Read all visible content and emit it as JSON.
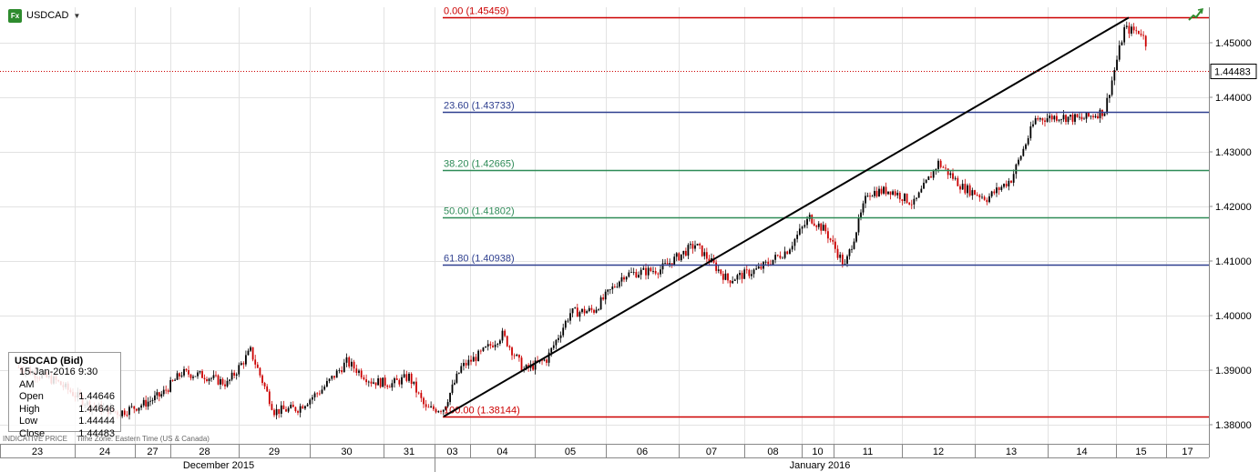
{
  "header": {
    "symbol": "USDCAD",
    "icon": "fx-icon",
    "dropdown_icon": "chevron-down-icon"
  },
  "trend_icon": "trend-line-icon",
  "infobox": {
    "title": "USDCAD (Bid)",
    "datetime": "15-Jan-2016 9:30 AM",
    "rows": [
      {
        "label": "Open",
        "value": "1.44646"
      },
      {
        "label": "High",
        "value": "1.44646"
      },
      {
        "label": "Low",
        "value": "1.44444"
      },
      {
        "label": "Close",
        "value": "1.44483"
      }
    ]
  },
  "footer_note": {
    "price_type": "INDICATIVE PRICE",
    "timezone": "Time Zone: Eastern Time (US & Canada)"
  },
  "colors": {
    "candle_up": "#000000",
    "candle_down": "#cc0000",
    "fib_red": "#cc0000",
    "fib_blue": "#2e3f8f",
    "fib_green": "#2e8b57",
    "last_price": "#cc0000"
  },
  "chart_data": {
    "type": "candlestick",
    "instrument": "USDCAD",
    "ylim": [
      1.3765,
      1.4565
    ],
    "y_ticks": [
      "1.38000",
      "1.39000",
      "1.40000",
      "1.41000",
      "1.42000",
      "1.43000",
      "1.44000",
      "1.45000"
    ],
    "y_tick_values": [
      1.38,
      1.39,
      1.4,
      1.41,
      1.42,
      1.43,
      1.44,
      1.45
    ],
    "x_day_labels": [
      "23",
      "24",
      "27",
      "28",
      "29",
      "30",
      "31",
      "03",
      "04",
      "05",
      "06",
      "07",
      "08",
      "10",
      "11",
      "12",
      "13",
      "14",
      "15",
      "17"
    ],
    "x_month_labels": [
      "December 2015",
      "January 2016"
    ],
    "last_price": 1.44483,
    "last_price_label": "1.44483",
    "fibonacci": [
      {
        "label": "0.00 (1.45459)",
        "value": 1.45459,
        "color": "#cc0000"
      },
      {
        "label": "23.60 (1.43733)",
        "value": 1.43733,
        "color": "#2e3f8f"
      },
      {
        "label": "38.20 (1.42665)",
        "value": 1.42665,
        "color": "#2e8b57"
      },
      {
        "label": "50.00 (1.41802)",
        "value": 1.41802,
        "color": "#2e8b57"
      },
      {
        "label": "61.80 (1.40938)",
        "value": 1.40938,
        "color": "#2e3f8f"
      },
      {
        "label": "100.00 (1.38144)",
        "value": 1.38144,
        "color": "#cc0000"
      }
    ],
    "trendline": {
      "from": {
        "day": "03",
        "value": 1.3815
      },
      "to": {
        "day": "15",
        "value": 1.4546
      }
    },
    "price_path": [
      {
        "day": "23",
        "value": 1.3905
      },
      {
        "day": "23",
        "value": 1.388
      },
      {
        "day": "24",
        "value": 1.3835
      },
      {
        "day": "24",
        "value": 1.3822
      },
      {
        "day": "27",
        "value": 1.3838
      },
      {
        "day": "27",
        "value": 1.3855
      },
      {
        "day": "28",
        "value": 1.3895
      },
      {
        "day": "28",
        "value": 1.389
      },
      {
        "day": "28",
        "value": 1.3875
      },
      {
        "day": "29",
        "value": 1.3935
      },
      {
        "day": "29",
        "value": 1.3825
      },
      {
        "day": "29",
        "value": 1.383
      },
      {
        "day": "30",
        "value": 1.3865
      },
      {
        "day": "30",
        "value": 1.3915
      },
      {
        "day": "30",
        "value": 1.388
      },
      {
        "day": "31",
        "value": 1.3875
      },
      {
        "day": "31",
        "value": 1.3888
      },
      {
        "day": "31",
        "value": 1.3828
      },
      {
        "day": "03",
        "value": 1.383
      },
      {
        "day": "03",
        "value": 1.3905
      },
      {
        "day": "04",
        "value": 1.393
      },
      {
        "day": "04",
        "value": 1.3965
      },
      {
        "day": "04",
        "value": 1.39
      },
      {
        "day": "05",
        "value": 1.392
      },
      {
        "day": "05",
        "value": 1.4005
      },
      {
        "day": "05",
        "value": 1.401
      },
      {
        "day": "06",
        "value": 1.4075
      },
      {
        "day": "06",
        "value": 1.4085
      },
      {
        "day": "07",
        "value": 1.413
      },
      {
        "day": "07",
        "value": 1.4065
      },
      {
        "day": "08",
        "value": 1.4085
      },
      {
        "day": "08",
        "value": 1.412
      },
      {
        "day": "10",
        "value": 1.418
      },
      {
        "day": "10",
        "value": 1.4155
      },
      {
        "day": "11",
        "value": 1.409
      },
      {
        "day": "11",
        "value": 1.4225
      },
      {
        "day": "11",
        "value": 1.423
      },
      {
        "day": "12",
        "value": 1.4205
      },
      {
        "day": "12",
        "value": 1.428
      },
      {
        "day": "12",
        "value": 1.4235
      },
      {
        "day": "13",
        "value": 1.4215
      },
      {
        "day": "13",
        "value": 1.425
      },
      {
        "day": "13",
        "value": 1.436
      },
      {
        "day": "14",
        "value": 1.4365
      },
      {
        "day": "14",
        "value": 1.436
      },
      {
        "day": "14",
        "value": 1.4375
      },
      {
        "day": "15",
        "value": 1.4525
      },
      {
        "day": "15",
        "value": 1.452
      },
      {
        "day": "15",
        "value": 1.4448
      }
    ]
  }
}
